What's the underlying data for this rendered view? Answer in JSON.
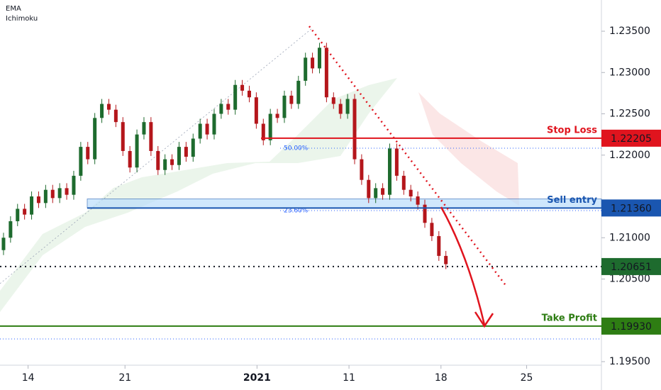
{
  "chart_data": {
    "type": "candlestick",
    "indicators": [
      "EMA",
      "Ichimoku"
    ],
    "up_color": "#1e6b2e",
    "down_color": "#b4161b",
    "xlim": [
      -0.5,
      85.15
    ],
    "ylim": [
      1.19457,
      1.23878
    ],
    "xticks": [
      {
        "value": 3.5,
        "label": "14"
      },
      {
        "value": 17.3,
        "label": "21"
      },
      {
        "value": 36.1,
        "label": "2021"
      },
      {
        "value": 49.2,
        "label": "11"
      },
      {
        "value": 62.3,
        "label": "18"
      },
      {
        "value": 74.5,
        "label": "25"
      }
    ],
    "yticks": [
      {
        "value": 1.235,
        "label": "1.23500"
      },
      {
        "value": 1.23,
        "label": "1.23000"
      },
      {
        "value": 1.225,
        "label": "1.22500"
      },
      {
        "value": 1.22,
        "label": "1.22000"
      },
      {
        "value": 1.21,
        "label": "1.21000"
      },
      {
        "value": 1.205,
        "label": "1.20500"
      },
      {
        "value": 1.195,
        "label": "1.19500"
      }
    ],
    "open": [
      1.2085,
      1.21,
      1.212,
      1.2135,
      1.2128,
      1.215,
      1.2142,
      1.2158,
      1.2148,
      1.216,
      1.2152,
      1.2175,
      1.221,
      1.2195,
      1.2245,
      1.2262,
      1.2255,
      1.224,
      1.2205,
      1.2185,
      1.2225,
      1.224,
      1.2205,
      1.2182,
      1.2195,
      1.2188,
      1.221,
      1.2198,
      1.222,
      1.2238,
      1.2225,
      1.225,
      1.2262,
      1.2255,
      1.2285,
      1.2278,
      1.227,
      1.2238,
      1.2218,
      1.225,
      1.2245,
      1.2272,
      1.2262,
      1.229,
      1.2318,
      1.2305,
      1.233,
      1.227,
      1.2262,
      1.225,
      1.2268,
      1.2195,
      1.217,
      1.2148,
      1.216,
      1.2152,
      1.2208,
      1.2175,
      1.2158,
      1.215,
      1.214,
      1.2118,
      1.2102,
      1.2078
    ],
    "high": [
      1.2106,
      1.2126,
      1.2141,
      1.2141,
      1.2156,
      1.2156,
      1.2164,
      1.2164,
      1.2166,
      1.2166,
      1.2181,
      1.2216,
      1.2216,
      1.2251,
      1.2268,
      1.2268,
      1.2261,
      1.2246,
      1.2211,
      1.2231,
      1.2246,
      1.2246,
      1.2211,
      1.2201,
      1.2201,
      1.2216,
      1.2216,
      1.2226,
      1.2244,
      1.2244,
      1.2256,
      1.2268,
      1.2268,
      1.2291,
      1.2291,
      1.2284,
      1.2276,
      1.2244,
      1.2256,
      1.2256,
      1.2278,
      1.2278,
      1.2296,
      1.2324,
      1.2324,
      1.2336,
      1.2336,
      1.2276,
      1.2268,
      1.2274,
      1.2274,
      1.2201,
      1.2176,
      1.2166,
      1.2166,
      1.2214,
      1.2214,
      1.2181,
      1.2164,
      1.2156,
      1.2146,
      1.2124,
      1.2108,
      1.2084
    ],
    "low": [
      1.2079,
      1.2094,
      1.2114,
      1.2122,
      1.2122,
      1.2136,
      1.2136,
      1.2142,
      1.2142,
      1.2146,
      1.2146,
      1.2169,
      1.2189,
      1.2189,
      1.2239,
      1.2249,
      1.2234,
      1.2199,
      1.2179,
      1.2179,
      1.2219,
      1.2199,
      1.2176,
      1.2176,
      1.2182,
      1.2182,
      1.2192,
      1.2192,
      1.2214,
      1.2219,
      1.2219,
      1.2244,
      1.2249,
      1.2249,
      1.2272,
      1.2264,
      1.2232,
      1.2212,
      1.2212,
      1.2239,
      1.2239,
      1.2256,
      1.2256,
      1.2284,
      1.2299,
      1.2299,
      1.2264,
      1.2256,
      1.2244,
      1.2244,
      1.2189,
      1.2164,
      1.2142,
      1.2142,
      1.2146,
      1.2146,
      1.2169,
      1.2152,
      1.2144,
      1.2134,
      1.2112,
      1.2096,
      1.2072,
      1.2062
    ],
    "close": [
      1.21,
      1.212,
      1.2135,
      1.2128,
      1.215,
      1.2142,
      1.2158,
      1.2148,
      1.216,
      1.2152,
      1.2175,
      1.221,
      1.2195,
      1.2245,
      1.2262,
      1.2255,
      1.224,
      1.2205,
      1.2185,
      1.2225,
      1.224,
      1.2205,
      1.2182,
      1.2195,
      1.2188,
      1.221,
      1.2198,
      1.222,
      1.2238,
      1.2225,
      1.225,
      1.2262,
      1.2255,
      1.2285,
      1.2278,
      1.227,
      1.2238,
      1.2218,
      1.225,
      1.2245,
      1.2272,
      1.2262,
      1.229,
      1.2318,
      1.2305,
      1.233,
      1.227,
      1.2262,
      1.225,
      1.2268,
      1.2195,
      1.217,
      1.2148,
      1.216,
      1.2152,
      1.2208,
      1.2175,
      1.2158,
      1.215,
      1.214,
      1.2118,
      1.2102,
      1.2078,
      1.2068
    ],
    "levels": [
      {
        "name": "Stop Loss",
        "value": 1.22205,
        "value_label": "1.22205",
        "color": "#e0141e"
      },
      {
        "name": "Sell entry",
        "value": 1.2136,
        "value_label": "1.21360",
        "color": "#1a56b0"
      },
      {
        "value": 1.20651,
        "value_label": "1.20651",
        "color": "#1e6b2e"
      },
      {
        "name": "Take Profit",
        "value": 1.1993,
        "value_label": "1.19930",
        "color": "#2e7d13"
      }
    ],
    "sell_zone": [
      1.2136,
      1.2147
    ],
    "fib_levels": [
      {
        "value": 1.22084,
        "label": "50.00%"
      },
      {
        "value": 1.21328,
        "label": "23.60%"
      }
    ],
    "dotted_level": 1.19775
  }
}
